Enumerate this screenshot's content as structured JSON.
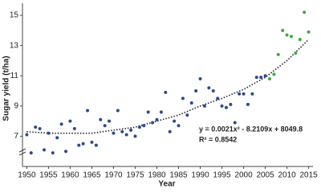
{
  "chart_data": {
    "type": "scatter",
    "xlabel": "Year",
    "ylabel": "Sugar yield (t/ha)",
    "annotations": [
      "y = 0.0021x² - 8.2109x + 8049.8",
      "R² = 0.8542"
    ],
    "series": [
      {
        "color": "#2e4a8c",
        "marker": "circle",
        "x": [
          1950,
          1951,
          1952,
          1953,
          1954,
          1955,
          1956,
          1957,
          1958,
          1959,
          1960,
          1961,
          1962,
          1963,
          1964,
          1965,
          1966,
          1967,
          1968,
          1969,
          1970,
          1971,
          1972,
          1973,
          1974,
          1975,
          1976,
          1977,
          1978,
          1979,
          1980,
          1981,
          1982,
          1983,
          1984,
          1985,
          1986,
          1987,
          1988,
          1989,
          1990,
          1991,
          1992,
          1993,
          1994,
          1995,
          1996,
          1997,
          1998,
          1999,
          2000,
          2001,
          2002,
          2003,
          2004,
          2005
        ],
        "values": [
          7.1,
          5.9,
          7.6,
          7.5,
          6.1,
          7.2,
          5.9,
          6.9,
          7.8,
          6.0,
          8.0,
          7.5,
          6.4,
          6.5,
          8.7,
          6.6,
          6.4,
          8.1,
          7.7,
          8.0,
          7.2,
          8.7,
          7.3,
          7.1,
          7.4,
          7.0,
          7.6,
          7.7,
          8.6,
          7.9,
          8.1,
          8.6,
          9.9,
          7.3,
          8.0,
          7.7,
          9.5,
          8.4,
          9.2,
          10.0,
          10.8,
          9.0,
          10.2,
          10.0,
          9.5,
          9.0,
          8.9,
          9.1,
          7.9,
          9.8,
          9.8,
          9.1,
          9.8,
          10.9,
          10.9,
          11.0
        ]
      },
      {
        "color": "#3daa3d",
        "marker": "circle",
        "x": [
          2006,
          2007,
          2008,
          2009,
          2010,
          2011,
          2012,
          2013,
          2014,
          2015
        ],
        "values": [
          10.8,
          11.1,
          12.4,
          14.0,
          13.7,
          13.6,
          12.5,
          13.4,
          15.2,
          13.9
        ]
      }
    ],
    "trendline": {
      "color": "#222222",
      "style": "dotted",
      "x": [
        1950,
        1955,
        1960,
        1965,
        1970,
        1975,
        1980,
        1985,
        1990,
        1995,
        2000,
        2005,
        2010,
        2015
      ],
      "values": [
        7.3,
        7.2,
        7.2,
        7.2,
        7.4,
        7.6,
        8.0,
        8.4,
        9.0,
        9.5,
        10.1,
        10.9,
        12.0,
        13.4
      ]
    },
    "xlim": [
      1949,
      2016
    ],
    "ylim": [
      5,
      15.8
    ],
    "xticks": [
      1950,
      1955,
      1960,
      1965,
      1970,
      1975,
      1980,
      1985,
      1990,
      1995,
      2000,
      2005,
      2010,
      2015
    ],
    "yticks": [
      7,
      9,
      11,
      13,
      15
    ],
    "axis_break": true
  }
}
